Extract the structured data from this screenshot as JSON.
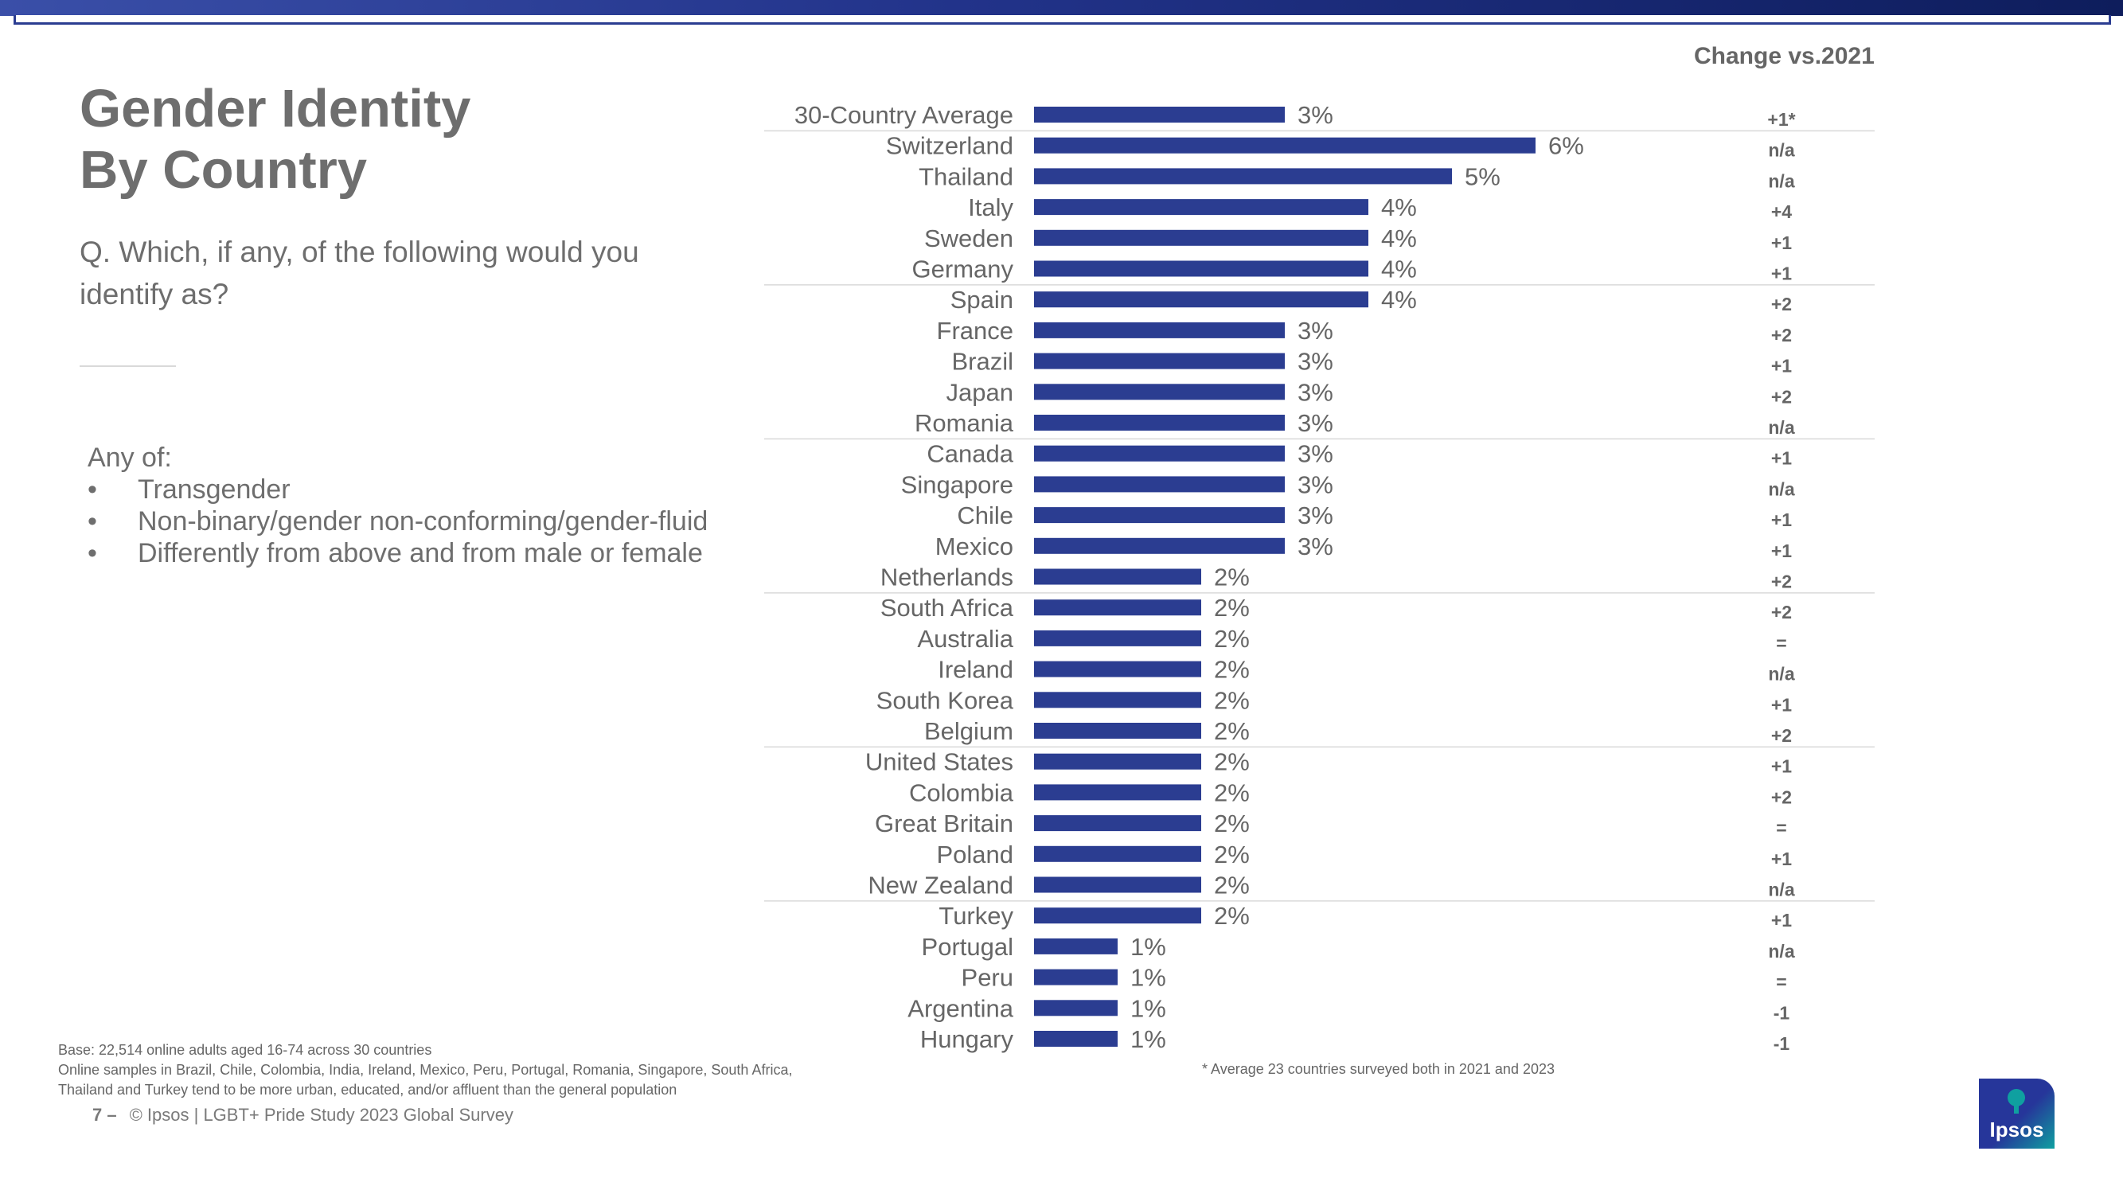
{
  "title": "Gender Identity\nBy Country",
  "question": "Q. Which, if any, of the following would you identify as?",
  "any_of": {
    "heading": "Any of:",
    "bullet": "•",
    "items": [
      "Transgender",
      "Non-binary/gender non-conforming/gender-fluid",
      "Differently from above and from male or female"
    ]
  },
  "change_header": "Change vs.2021",
  "footnote": "* Average 23 countries surveyed both in 2021 and 2023",
  "footer": {
    "base": "Base: 22,514 online adults aged 16-74 across 30 countries",
    "note_line1": "Online samples in Brazil, Chile, Colombia, India, Ireland, Mexico, Peru, Portugal, Romania, Singapore, South Africa,",
    "note_line2": "Thailand and Turkey tend to be more urban, educated, and/or affluent than the general population",
    "page_number": "7 –",
    "copyright": "© Ipsos | LGBT+ Pride Study 2023 Global Survey"
  },
  "logo_text": "Ipsos",
  "colors": {
    "bar": "#2b3d91",
    "text": "#666666",
    "divider": "#d9d9d9",
    "logo_teal": "#0fa0a0"
  },
  "chart_data": {
    "type": "bar",
    "orientation": "horizontal",
    "value_suffix": "%",
    "categories": [
      "30-Country Average",
      "Switzerland",
      "Thailand",
      "Italy",
      "Sweden",
      "Germany",
      "Spain",
      "France",
      "Brazil",
      "Japan",
      "Romania",
      "Canada",
      "Singapore",
      "Chile",
      "Mexico",
      "Netherlands",
      "South Africa",
      "Australia",
      "Ireland",
      "South Korea",
      "Belgium",
      "United States",
      "Colombia",
      "Great Britain",
      "Poland",
      "New Zealand",
      "Turkey",
      "Portugal",
      "Peru",
      "Argentina",
      "Hungary"
    ],
    "values": [
      3,
      6,
      5,
      4,
      4,
      4,
      4,
      3,
      3,
      3,
      3,
      3,
      3,
      3,
      3,
      2,
      2,
      2,
      2,
      2,
      2,
      2,
      2,
      2,
      2,
      2,
      2,
      1,
      1,
      1,
      1
    ],
    "change_vs_2021": [
      "+1*",
      "n/a",
      "n/a",
      "+4",
      "+1",
      "+1",
      "+2",
      "+2",
      "+1",
      "+2",
      "n/a",
      "+1",
      "n/a",
      "+1",
      "+1",
      "+2",
      "+2",
      "=",
      "n/a",
      "+1",
      "+2",
      "+1",
      "+2",
      "=",
      "+1",
      "n/a",
      "+1",
      "n/a",
      "=",
      "-1",
      "-1"
    ],
    "divider_after_rows": [
      0,
      5,
      10,
      15,
      20,
      25
    ]
  }
}
